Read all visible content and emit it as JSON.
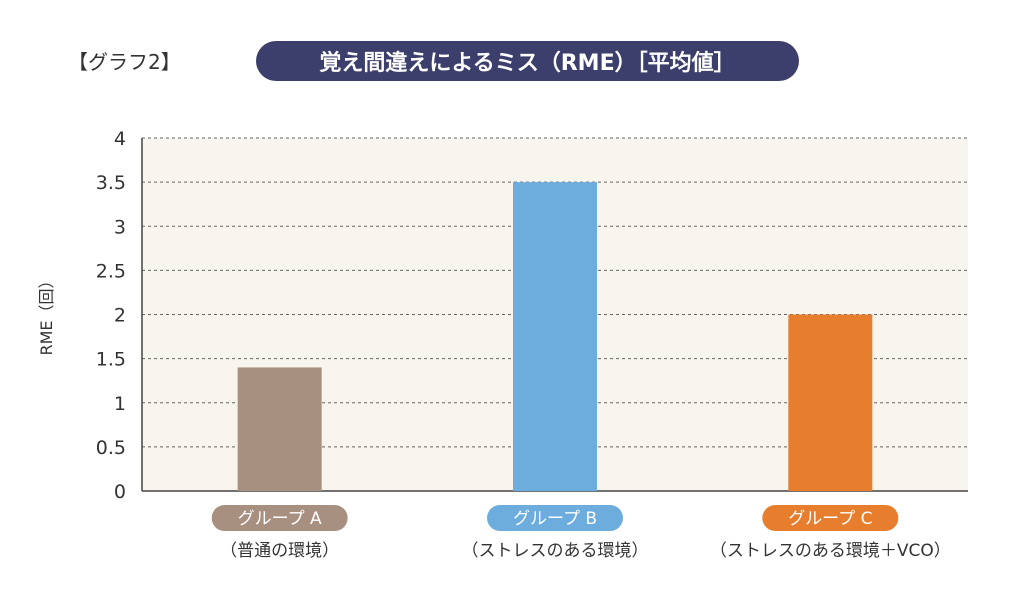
{
  "header": {
    "graph_label": "【グラフ2】",
    "title": "覚え間違えによるミス（RME）［平均値］"
  },
  "colors": {
    "plot_background": "#f8f4ee",
    "title_pill": "#3c3f6b",
    "group_a": "#a89080",
    "group_b": "#6caddd",
    "group_c": "#e67e2e"
  },
  "chart_data": {
    "type": "bar",
    "ylabel": "RME（回）",
    "ylim": [
      0,
      4
    ],
    "yticks": [
      "0",
      "0.5",
      "1",
      "1.5",
      "2",
      "2.5",
      "3",
      "3.5",
      "4"
    ],
    "grid": true,
    "categories": [
      {
        "name": "グループ A",
        "sub": "（普通の環境）",
        "color": "#a89080"
      },
      {
        "name": "グループ B",
        "sub": "（ストレスのある環境）",
        "color": "#6caddd"
      },
      {
        "name": "グループ C",
        "sub": "（ストレスのある環境＋VCO）",
        "color": "#e67e2e"
      }
    ],
    "values": [
      1.4,
      3.5,
      2.0
    ]
  }
}
